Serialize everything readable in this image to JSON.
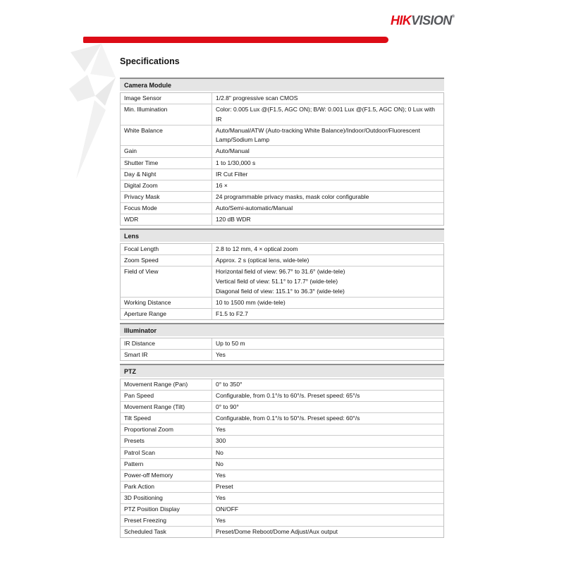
{
  "logo": {
    "hik": "HIK",
    "vision": "VISION",
    "reg": "®"
  },
  "title": "Specifications",
  "colors": {
    "brand_red": "#dd0c16",
    "logo_red": "#e30c17",
    "logo_gray": "#55575b",
    "section_header_bg": "#e5e5e5",
    "table_border": "#bfbfbf"
  },
  "table": {
    "sections": [
      {
        "title": "Camera Module",
        "rows": [
          {
            "label": "Image Sensor",
            "value": "1/2.8\" progressive scan CMOS"
          },
          {
            "label": "Min. Illumination",
            "value": "Color: 0.005 Lux @(F1.5, AGC ON); B/W: 0.001 Lux @(F1.5, AGC ON); 0 Lux with IR"
          },
          {
            "label": "White Balance",
            "value": "Auto/Manual/ATW (Auto-tracking White Balance)/Indoor/Outdoor/Fluorescent Lamp/Sodium Lamp"
          },
          {
            "label": "Gain",
            "value": "Auto/Manual"
          },
          {
            "label": "Shutter Time",
            "value": "1 to 1/30,000 s"
          },
          {
            "label": "Day & Night",
            "value": "IR Cut Filter"
          },
          {
            "label": "Digital Zoom",
            "value": "16 ×"
          },
          {
            "label": "Privacy Mask",
            "value": "24 programmable privacy masks, mask color configurable"
          },
          {
            "label": "Focus Mode",
            "value": "Auto/Semi-automatic/Manual"
          },
          {
            "label": "WDR",
            "value": "120 dB WDR"
          }
        ]
      },
      {
        "title": "Lens",
        "rows": [
          {
            "label": "Focal Length",
            "value": "2.8 to 12 mm, 4 × optical zoom"
          },
          {
            "label": "Zoom Speed",
            "value": "Approx. 2 s (optical lens, wide-tele)"
          },
          {
            "label": "Field of View",
            "value": "Horizontal field of view: 96.7° to 31.6° (wide-tele)\nVertical field of view: 51.1° to 17.7° (wide-tele)\nDiagonal field of view: 115.1° to 36.3° (wide-tele)"
          },
          {
            "label": "Working Distance",
            "value": "10 to 1500 mm (wide-tele)"
          },
          {
            "label": "Aperture Range",
            "value": "F1.5 to F2.7"
          }
        ]
      },
      {
        "title": "Illuminator",
        "rows": [
          {
            "label": "IR Distance",
            "value": "Up to 50 m"
          },
          {
            "label": "Smart IR",
            "value": "Yes"
          }
        ]
      },
      {
        "title": "PTZ",
        "rows": [
          {
            "label": "Movement Range (Pan)",
            "value": "0° to 350°"
          },
          {
            "label": "Pan Speed",
            "value": "Configurable, from 0.1°/s to 60°/s. Preset speed: 65°/s"
          },
          {
            "label": "Movement Range (Tilt)",
            "value": "0° to 90°"
          },
          {
            "label": "Tilt Speed",
            "value": "Configurable, from 0.1°/s to 50°/s. Preset speed: 60°/s"
          },
          {
            "label": "Proportional Zoom",
            "value": "Yes"
          },
          {
            "label": "Presets",
            "value": "300"
          },
          {
            "label": "Patrol Scan",
            "value": "No"
          },
          {
            "label": "Pattern",
            "value": "No"
          },
          {
            "label": "Power-off Memory",
            "value": "Yes"
          },
          {
            "label": "Park Action",
            "value": "Preset"
          },
          {
            "label": "3D Positioning",
            "value": "Yes"
          },
          {
            "label": "PTZ Position Display",
            "value": "ON/OFF"
          },
          {
            "label": "Preset Freezing",
            "value": "Yes"
          },
          {
            "label": "Scheduled Task",
            "value": "Preset/Dome Reboot/Dome Adjust/Aux output"
          }
        ]
      }
    ]
  }
}
